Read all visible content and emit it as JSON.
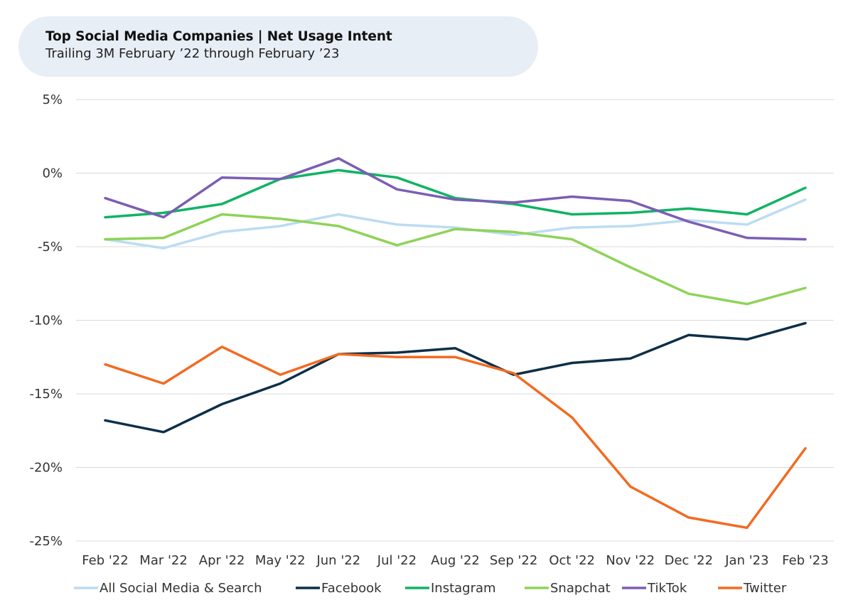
{
  "header": {
    "title": "Top Social Media Companies | Net Usage Intent",
    "subtitle": "Trailing 3M February ’22 through February ’23"
  },
  "chart_data": {
    "type": "line",
    "title": "Top Social Media Companies | Net Usage Intent",
    "subtitle": "Trailing 3M February ’22 through February ’23",
    "xlabel": "",
    "ylabel": "",
    "categories": [
      "Feb '22",
      "Mar '22",
      "Apr '22",
      "May '22",
      "Jun '22",
      "Jul '22",
      "Aug '22",
      "Sep '22",
      "Oct '22",
      "Nov '22",
      "Dec '22",
      "Jan '23",
      "Feb '23"
    ],
    "y_ticks": [
      5,
      0,
      -5,
      -10,
      -15,
      -20,
      -25
    ],
    "y_tick_labels": [
      "5%",
      "0%",
      "-5%",
      "-10%",
      "-15%",
      "-20%",
      "-25%"
    ],
    "ylim": [
      -25,
      5
    ],
    "grid": true,
    "legend_position": "bottom",
    "series": [
      {
        "name": "All Social Media & Search",
        "color": "#bcdcf2",
        "values": [
          -4.5,
          -5.1,
          -4.0,
          -3.6,
          -2.8,
          -3.5,
          -3.7,
          -4.2,
          -3.7,
          -3.6,
          -3.2,
          -3.5,
          -1.8
        ]
      },
      {
        "name": "Facebook",
        "color": "#0d2f48",
        "values": [
          -16.8,
          -17.6,
          -15.7,
          -14.3,
          -12.3,
          -12.2,
          -11.9,
          -13.7,
          -12.9,
          -12.6,
          -11.0,
          -11.3,
          -10.2
        ]
      },
      {
        "name": "Instagram",
        "color": "#10b364",
        "values": [
          -3.0,
          -2.7,
          -2.1,
          -0.4,
          0.2,
          -0.3,
          -1.7,
          -2.1,
          -2.8,
          -2.7,
          -2.4,
          -2.8,
          -1.0
        ]
      },
      {
        "name": "Snapchat",
        "color": "#8ed357",
        "values": [
          -4.5,
          -4.4,
          -2.8,
          -3.1,
          -3.6,
          -4.9,
          -3.8,
          -4.0,
          -4.5,
          -6.4,
          -8.2,
          -8.9,
          -7.8
        ]
      },
      {
        "name": "TikTok",
        "color": "#7b5eb4",
        "values": [
          -1.7,
          -3.0,
          -0.3,
          -0.4,
          1.0,
          -1.1,
          -1.8,
          -2.0,
          -1.6,
          -1.9,
          -3.3,
          -4.4,
          -4.5
        ]
      },
      {
        "name": "Twitter",
        "color": "#f26b21",
        "values": [
          -13.0,
          -14.3,
          -11.8,
          -13.7,
          -12.3,
          -12.5,
          -12.5,
          -13.6,
          -16.6,
          -21.3,
          -23.4,
          -24.1,
          -18.7
        ]
      }
    ]
  }
}
